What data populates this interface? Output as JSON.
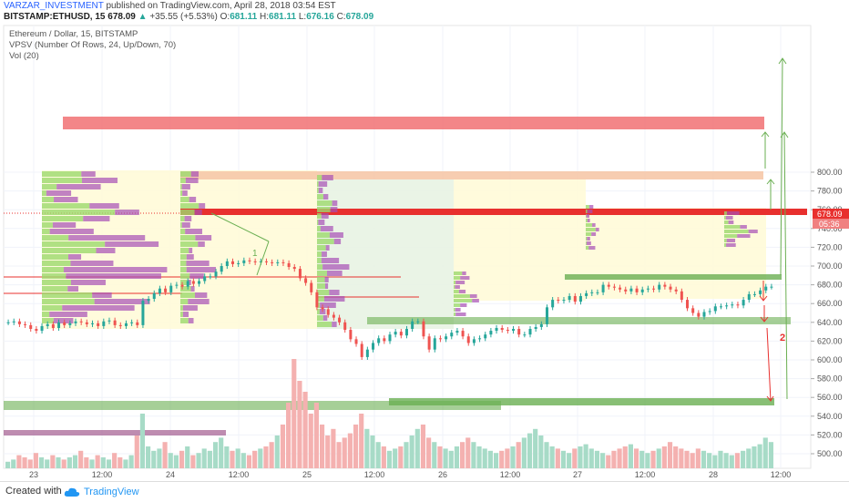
{
  "header": {
    "author": "VARZAR_INVESTMENT",
    "published": "published on TradingView.com, April 28, 2018 03:54 EST",
    "symbol": "BITSTAMP:ETHUSD, 15",
    "last": "678.09",
    "change": "+35.55 (+5.53%)",
    "o_label": "O:",
    "o": "681.11",
    "h_label": "H:",
    "h": "681.11",
    "l_label": "L:",
    "l": "676.16",
    "c_label": "C:",
    "c": "678.09"
  },
  "legends": {
    "title": "Ethereum / Dollar, 15, BITSTAMP",
    "vpsv": "VPSV (Number Of Rows, 24, Up/Down, 70)",
    "vol": "Vol (20)"
  },
  "footer": {
    "created": "Created with",
    "brand": "TradingView"
  },
  "colors": {
    "up": "#26a69a",
    "down": "#ef5350",
    "resistance": "#f0686a",
    "support": "#6aaf52",
    "orange_zone": "#f6c8a8",
    "yellow_zone": "#fffbd8",
    "green_zone": "#e3f1df",
    "profile_up": "#9cd96d",
    "profile_down": "#a64fb5",
    "blue_row": "#3d6fcb"
  },
  "chart_data": {
    "type": "line",
    "ylim": [
      490,
      810
    ],
    "y_ticks": [
      "500.00",
      "520.00",
      "540.00",
      "560.00",
      "580.00",
      "600.00",
      "620.00",
      "640.00",
      "660.00",
      "680.00",
      "700.00",
      "720.00",
      "740.00",
      "760.00",
      "780.00",
      "800.00"
    ],
    "x_ticks": [
      "23",
      "12:00",
      "24",
      "12:00",
      "25",
      "12:00",
      "26",
      "12:00",
      "27",
      "12:00",
      "28",
      "12:00"
    ],
    "price_labels": {
      "last": "678.09",
      "countdown": "05:36"
    },
    "annotations": [
      "1",
      "2"
    ],
    "series": [
      {
        "values": [
          640,
          641,
          638,
          637,
          633,
          631,
          636,
          638,
          634,
          640,
          637,
          639,
          641,
          640,
          638,
          639,
          636,
          641,
          642,
          637,
          636,
          639,
          640,
          637,
          663,
          665,
          671,
          676,
          672,
          679,
          680,
          678,
          684,
          681,
          684,
          689,
          689,
          694,
          700,
          705,
          702,
          703,
          706,
          705,
          704,
          705,
          704,
          703,
          704,
          703,
          699,
          697,
          687,
          682,
          672,
          656,
          654,
          648,
          645,
          640,
          632,
          622,
          617,
          603,
          611,
          618,
          623,
          620,
          627,
          630,
          626,
          633,
          641,
          641,
          625,
          611,
          623,
          622,
          625,
          629,
          631,
          625,
          618,
          622,
          623,
          627,
          631,
          634,
          632,
          631,
          633,
          627,
          627,
          633,
          635,
          638,
          656,
          664,
          663,
          664,
          668,
          662,
          668,
          671,
          672,
          672,
          680,
          678,
          677,
          675,
          673,
          676,
          672,
          675,
          676,
          675,
          680,
          678,
          675,
          673,
          664,
          655,
          650,
          646,
          651,
          652,
          657,
          657,
          658,
          659,
          658,
          664,
          670,
          670,
          674,
          678,
          678
        ]
      }
    ],
    "volume": [
      3,
      4,
      6,
      5,
      4,
      7,
      5,
      4,
      6,
      5,
      4,
      5,
      6,
      8,
      5,
      4,
      6,
      5,
      4,
      7,
      5,
      4,
      6,
      15,
      25,
      10,
      8,
      9,
      12,
      7,
      6,
      8,
      10,
      6,
      7,
      9,
      8,
      12,
      14,
      10,
      8,
      9,
      7,
      6,
      8,
      9,
      10,
      12,
      15,
      20,
      30,
      50,
      40,
      35,
      25,
      30,
      20,
      15,
      18,
      12,
      14,
      16,
      20,
      25,
      18,
      15,
      12,
      10,
      8,
      9,
      10,
      12,
      15,
      18,
      20,
      14,
      12,
      10,
      9,
      8,
      10,
      12,
      14,
      12,
      10,
      9,
      8,
      7,
      8,
      9,
      10,
      12,
      14,
      16,
      18,
      15,
      12,
      10,
      9,
      8,
      7,
      9,
      10,
      11,
      9,
      8,
      7,
      6,
      8,
      9,
      10,
      11,
      9,
      8,
      7,
      8,
      9,
      10,
      12,
      10,
      9,
      8,
      7,
      9,
      8,
      7,
      6,
      8,
      7,
      6,
      7,
      8,
      9,
      10,
      11,
      14,
      12
    ]
  }
}
